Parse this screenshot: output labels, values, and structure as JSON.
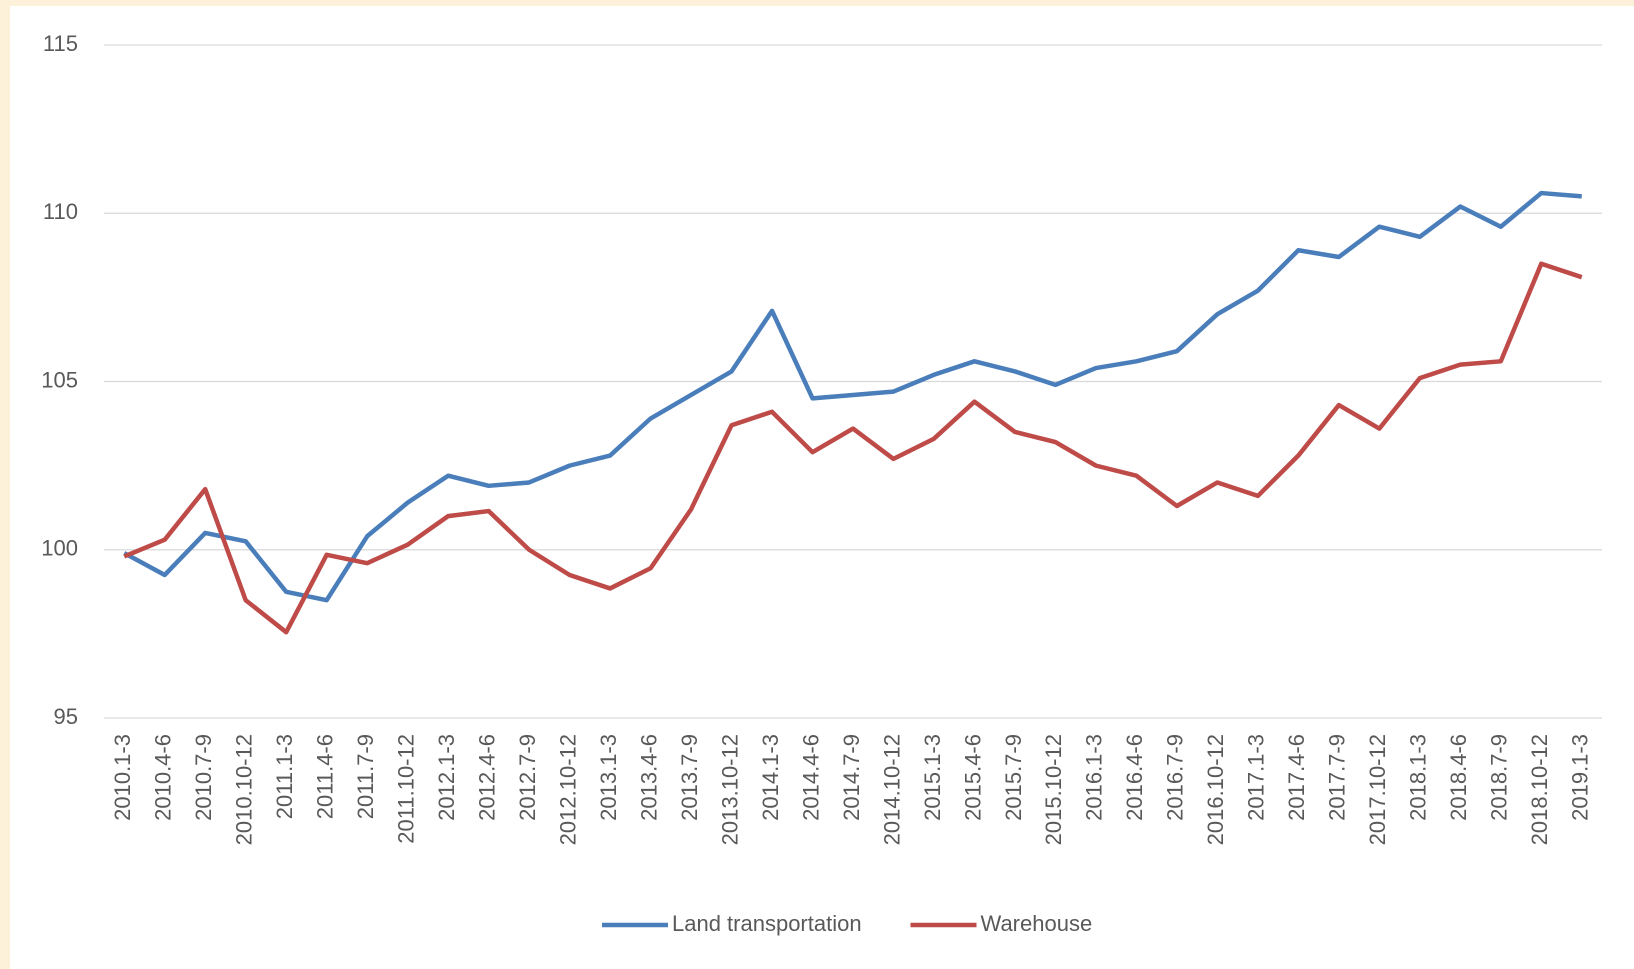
{
  "chart_data": {
    "type": "line",
    "categories": [
      "2010.1-3",
      "2010.4-6",
      "2010.7-9",
      "2010.10-12",
      "2011.1-3",
      "2011.4-6",
      "2011.7-9",
      "2011.10-12",
      "2012.1-3",
      "2012.4-6",
      "2012.7-9",
      "2012.10-12",
      "2013.1-3",
      "2013.4-6",
      "2013.7-9",
      "2013.10-12",
      "2014.1-3",
      "2014.4-6",
      "2014.7-9",
      "2014.10-12",
      "2015.1-3",
      "2015.4-6",
      "2015.7-9",
      "2015.10-12",
      "2016.1-3",
      "2016.4-6",
      "2016.7-9",
      "2016.10-12",
      "2017.1-3",
      "2017.4-6",
      "2017.7-9",
      "2017.10-12",
      "2018.1-3",
      "2018.4-6",
      "2018.7-9",
      "2018.10-12",
      "2019.1-3"
    ],
    "series": [
      {
        "name": "Land transportation",
        "color": "#4a7ebb",
        "values": [
          99.9,
          99.25,
          100.5,
          100.25,
          98.75,
          98.5,
          100.4,
          101.4,
          102.2,
          101.9,
          102.0,
          102.5,
          102.8,
          103.9,
          104.6,
          105.3,
          107.1,
          104.5,
          104.6,
          104.7,
          105.2,
          105.6,
          105.3,
          104.9,
          105.4,
          105.6,
          105.9,
          107.0,
          107.7,
          108.9,
          108.7,
          109.6,
          109.3,
          110.2,
          109.6,
          110.6,
          110.5
        ]
      },
      {
        "name": "Warehouse",
        "color": "#be4b48",
        "values": [
          99.8,
          100.3,
          101.8,
          98.5,
          97.55,
          99.85,
          99.6,
          100.15,
          101.0,
          101.15,
          100.0,
          99.25,
          98.85,
          99.45,
          101.2,
          103.7,
          104.1,
          102.9,
          103.6,
          102.7,
          103.3,
          104.4,
          103.5,
          103.2,
          102.5,
          102.2,
          101.3,
          102.0,
          101.6,
          102.8,
          104.3,
          103.6,
          105.1,
          105.5,
          105.6,
          108.5,
          108.1
        ]
      }
    ],
    "ylim": [
      95,
      115
    ],
    "yticks": [
      95,
      100,
      105,
      110,
      115
    ],
    "grid": true,
    "legend": "bottom"
  }
}
